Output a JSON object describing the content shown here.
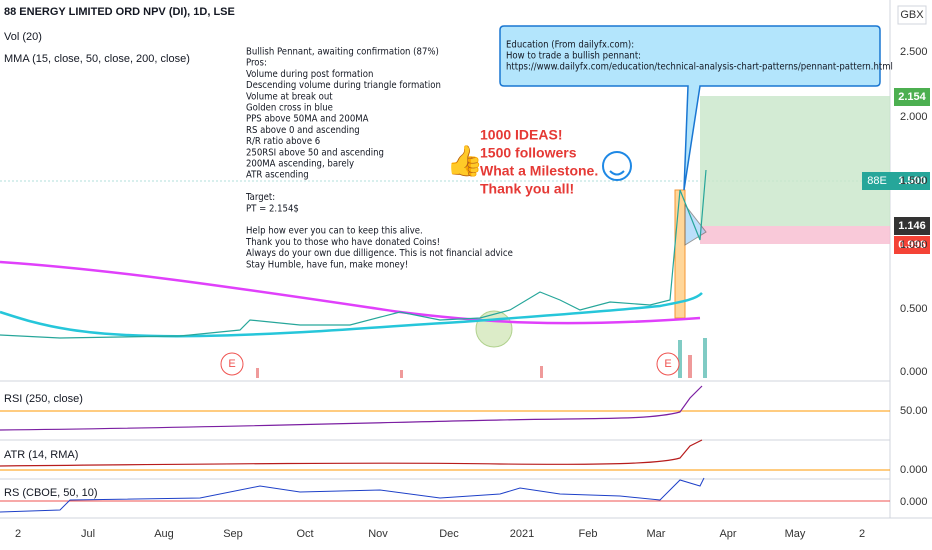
{
  "header": {
    "title": "88 ENERGY LIMITED ORD NPV (DI), 1D, LSE",
    "volume": "Vol (20)",
    "mma": "MMA (15, close, 50, close, 200, close)"
  },
  "note": {
    "paragraphs": [
      [
        "Bullish Pennant, awaiting confirmation (87%)",
        "Pros:",
        "Volume during post formation",
        "Descending volume during triangle formation",
        "Volume at break out",
        "Golden cross in blue",
        "PPS above 50MA and 200MA",
        "RS above 0 and ascending",
        "R/R ratio above 6",
        "250RSI above 50 and ascending",
        "200MA ascending, barely",
        "ATR ascending"
      ],
      [
        "Target:",
        "PT = 2.154$"
      ],
      [
        "Help how ever you can to keep this alive.",
        "Thank you to those who have donated Coins!",
        "Always do your own due dilligence. This is not financial advice",
        "Stay Humble, have fun, make money!"
      ]
    ]
  },
  "education": [
    "Education (From dailyfx.com):",
    "How to trade a bullish pennant:",
    "https://www.dailyfx.com/education/technical-analysis-chart-patterns/pennant-pattern.html"
  ],
  "ideas": [
    "1000 IDEAS!",
    "1500 followers",
    "What a Milestone.",
    "Thank you all!"
  ],
  "earnings": [
    "E",
    "E"
  ],
  "price_axis": {
    "currency": "GBX",
    "labels": [
      "2.500",
      "2.000",
      "1.500",
      "1.000",
      "0.500",
      "0.000"
    ],
    "target": "2.154",
    "symbol": "88E",
    "last": "1.500",
    "entry": "1.146",
    "stop": "0.996"
  },
  "panes": [
    {
      "label": "RSI (250, close)",
      "level": "50.00"
    },
    {
      "label": "ATR (14, RMA)",
      "level": "0.000"
    },
    {
      "label": "RS (CBOE, 50, 10)",
      "level": "0.000"
    }
  ],
  "time_axis": [
    "2",
    "Jul",
    "Aug",
    "Sep",
    "Oct",
    "Nov",
    "Dec",
    "2021",
    "Feb",
    "Mar",
    "Apr",
    "May",
    "2"
  ]
}
